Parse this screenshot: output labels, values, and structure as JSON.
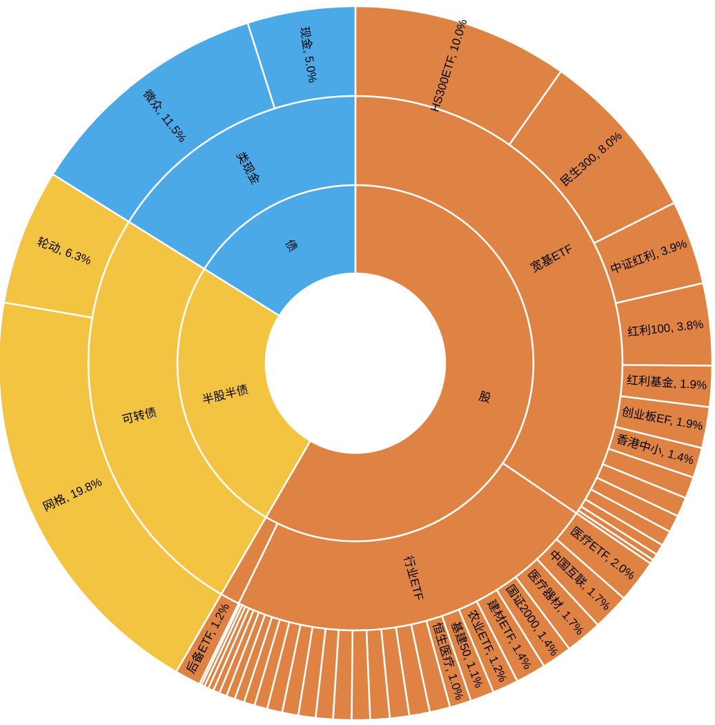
{
  "chart_data": {
    "type": "sunburst",
    "title": "",
    "colors": {
      "股": "#DE8344",
      "债": "#4BA9E8",
      "半股半债": "#F3C342"
    },
    "nodes": [
      {
        "name": "股",
        "show_label": true,
        "children": [
          {
            "name": "宽基ETF",
            "show_label": true,
            "children": [
              {
                "name": "HS300ETF",
                "value": 10.0,
                "label": "HS300ETF, 10.0%"
              },
              {
                "name": "民生300",
                "value": 8.0,
                "label": "民生300, 8.0%"
              },
              {
                "name": "中证红利",
                "value": 3.9,
                "label": "中证红利, 3.9%"
              },
              {
                "name": "红利100",
                "value": 3.8,
                "label": "红利100, 3.8%"
              },
              {
                "name": "红利基金",
                "value": 1.9,
                "label": "红利基金, 1.9%"
              },
              {
                "name": "创业板EF",
                "value": 1.9,
                "label": "创业板EF, 1.9%"
              },
              {
                "name": "香港中小",
                "value": 1.4,
                "label": "香港中小, 1.4%"
              },
              {
                "name": "",
                "value": 1.0,
                "label": ""
              },
              {
                "name": "",
                "value": 0.9,
                "label": ""
              },
              {
                "name": "",
                "value": 0.8,
                "label": ""
              },
              {
                "name": "",
                "value": 0.7,
                "label": ""
              },
              {
                "name": "",
                "value": 0.5,
                "label": ""
              },
              {
                "name": "",
                "value": 0.3,
                "label": ""
              },
              {
                "name": "",
                "value": 0.2,
                "label": ""
              }
            ]
          },
          {
            "name": "行业ETF",
            "show_label": true,
            "children": [
              {
                "name": "医疗ETF",
                "value": 2.0,
                "label": "医疗ETF, 2.0%"
              },
              {
                "name": "中国互联",
                "value": 1.7,
                "label": "中国互联, 1.7%"
              },
              {
                "name": "医疗器材",
                "value": 1.7,
                "label": "医疗器材, 1.7%"
              },
              {
                "name": "国证2000",
                "value": 1.4,
                "label": "国证2000, 1.4%"
              },
              {
                "name": "建材ETF",
                "value": 1.4,
                "label": "建材ETF, 1.4%"
              },
              {
                "name": "农业ETF",
                "value": 1.2,
                "label": "农业ETF, 1.2%"
              },
              {
                "name": "基建50",
                "value": 1.1,
                "label": "基建50, 1.1%"
              },
              {
                "name": "恒生医疗",
                "value": 1.0,
                "label": "恒生医疗, 1.0%"
              },
              {
                "name": "",
                "value": 0.95,
                "label": ""
              },
              {
                "name": "",
                "value": 0.95,
                "label": ""
              },
              {
                "name": "",
                "value": 0.9,
                "label": ""
              },
              {
                "name": "",
                "value": 0.9,
                "label": ""
              },
              {
                "name": "",
                "value": 0.85,
                "label": ""
              },
              {
                "name": "",
                "value": 0.85,
                "label": ""
              },
              {
                "name": "",
                "value": 0.8,
                "label": ""
              },
              {
                "name": "",
                "value": 0.8,
                "label": ""
              },
              {
                "name": "",
                "value": 0.75,
                "label": ""
              },
              {
                "name": "",
                "value": 0.7,
                "label": ""
              },
              {
                "name": "",
                "value": 0.6,
                "label": ""
              },
              {
                "name": "",
                "value": 0.5,
                "label": ""
              },
              {
                "name": "",
                "value": 0.45,
                "label": ""
              },
              {
                "name": "",
                "value": 0.4,
                "label": ""
              },
              {
                "name": "",
                "value": 0.35,
                "label": ""
              },
              {
                "name": "",
                "value": 0.3,
                "label": ""
              },
              {
                "name": "",
                "value": 0.25,
                "label": ""
              },
              {
                "name": "",
                "value": 0.2,
                "label": ""
              },
              {
                "name": "",
                "value": 0.15,
                "label": ""
              },
              {
                "name": "",
                "value": 0.1,
                "label": ""
              }
            ]
          },
          {
            "name": "",
            "show_label": false,
            "children": [
              {
                "name": "后备ETF",
                "value": 1.2,
                "label": "后备ETF, 1.2%"
              }
            ]
          }
        ]
      },
      {
        "name": "半股半债",
        "show_label": true,
        "children": [
          {
            "name": "可转债",
            "show_label": true,
            "children": [
              {
                "name": "网格",
                "value": 19.8,
                "label": "网格, 19.8%"
              },
              {
                "name": "轮动",
                "value": 6.3,
                "label": "轮动, 6.3%"
              }
            ]
          }
        ]
      },
      {
        "name": "债",
        "show_label": true,
        "children": [
          {
            "name": "类现金",
            "show_label": true,
            "children": [
              {
                "name": "微众",
                "value": 11.5,
                "label": "微众, 11.5%"
              },
              {
                "name": "现金",
                "value": 5.0,
                "label": "现金, 5.0%"
              }
            ]
          }
        ]
      }
    ]
  }
}
